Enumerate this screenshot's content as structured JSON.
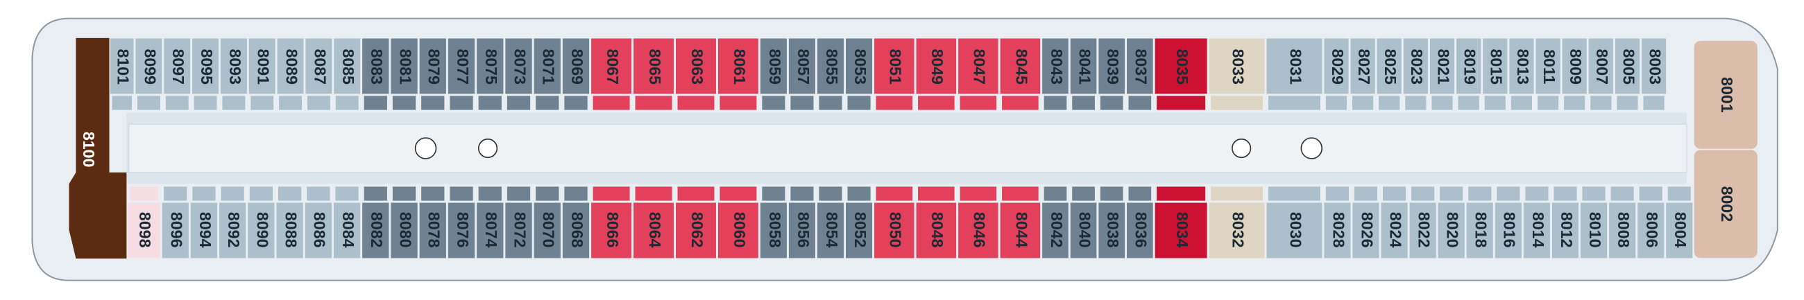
{
  "rooms_top": [
    {
      "label": "8101",
      "color": "#abc0cb"
    },
    {
      "label": "8099",
      "color": "#abc0cb"
    },
    {
      "label": "8097",
      "color": "#abc0cb"
    },
    {
      "label": "8095",
      "color": "#abc0cb"
    },
    {
      "label": "8093",
      "color": "#abc0cb"
    },
    {
      "label": "8091",
      "color": "#abc0cb"
    },
    {
      "label": "8089",
      "color": "#abc0cb"
    },
    {
      "label": "8087",
      "color": "#abc0cb"
    },
    {
      "label": "8085",
      "color": "#abc0cb"
    },
    {
      "label": "8083",
      "color": "#6e8291"
    },
    {
      "label": "8081",
      "color": "#6e8291"
    },
    {
      "label": "8079",
      "color": "#6e8291"
    },
    {
      "label": "8077",
      "color": "#6e8291"
    },
    {
      "label": "8075",
      "color": "#6e8291"
    },
    {
      "label": "8073",
      "color": "#6e8291"
    },
    {
      "label": "8071",
      "color": "#6e8291"
    },
    {
      "label": "8069",
      "color": "#6e8291"
    },
    {
      "label": "8067",
      "color": "#e3415b"
    },
    {
      "label": "8065",
      "color": "#e3415b"
    },
    {
      "label": "8063",
      "color": "#e3415b"
    },
    {
      "label": "8061",
      "color": "#e3415b"
    },
    {
      "label": "8059",
      "color": "#6e8291"
    },
    {
      "label": "8057",
      "color": "#6e8291"
    },
    {
      "label": "8055",
      "color": "#6e8291"
    },
    {
      "label": "8053",
      "color": "#6e8291"
    },
    {
      "label": "8051",
      "color": "#e3415b"
    },
    {
      "label": "8049",
      "color": "#e3415b"
    },
    {
      "label": "8047",
      "color": "#e3415b"
    },
    {
      "label": "8045",
      "color": "#e3415b"
    },
    {
      "label": "8043",
      "color": "#6e8291"
    },
    {
      "label": "8041",
      "color": "#6e8291"
    },
    {
      "label": "8039",
      "color": "#6e8291"
    },
    {
      "label": "8037",
      "color": "#6e8291"
    },
    {
      "label": "8035",
      "color": "#cc1132"
    },
    {
      "label": "8033",
      "color": "#ded6c3"
    },
    {
      "label": "8031",
      "color": "#abc0cb"
    },
    {
      "label": "8029",
      "color": "#abc0cb"
    },
    {
      "label": "8027",
      "color": "#abc0cb"
    },
    {
      "label": "8025",
      "color": "#abc0cb"
    },
    {
      "label": "8023",
      "color": "#abc0cb"
    },
    {
      "label": "8021",
      "color": "#abc0cb"
    },
    {
      "label": "8019",
      "color": "#abc0cb"
    },
    {
      "label": "8015",
      "color": "#abc0cb"
    },
    {
      "label": "8013",
      "color": "#abc0cb"
    },
    {
      "label": "8011",
      "color": "#abc0cb"
    },
    {
      "label": "8009",
      "color": "#abc0cb"
    },
    {
      "label": "8007",
      "color": "#abc0cb"
    },
    {
      "label": "8005",
      "color": "#abc0cb"
    },
    {
      "label": "8003",
      "color": "#abc0cb"
    }
  ],
  "rooms_bottom": [
    {
      "label": "8098",
      "color": "#f6dde3"
    },
    {
      "label": "8096",
      "color": "#abc0cb"
    },
    {
      "label": "8094",
      "color": "#abc0cb"
    },
    {
      "label": "8092",
      "color": "#abc0cb"
    },
    {
      "label": "8090",
      "color": "#abc0cb"
    },
    {
      "label": "8088",
      "color": "#abc0cb"
    },
    {
      "label": "8086",
      "color": "#abc0cb"
    },
    {
      "label": "8084",
      "color": "#abc0cb"
    },
    {
      "label": "8082",
      "color": "#6e8291"
    },
    {
      "label": "8080",
      "color": "#6e8291"
    },
    {
      "label": "8078",
      "color": "#6e8291"
    },
    {
      "label": "8076",
      "color": "#6e8291"
    },
    {
      "label": "8074",
      "color": "#6e8291"
    },
    {
      "label": "8072",
      "color": "#6e8291"
    },
    {
      "label": "8070",
      "color": "#6e8291"
    },
    {
      "label": "8068",
      "color": "#6e8291"
    },
    {
      "label": "8066",
      "color": "#e3415b"
    },
    {
      "label": "8064",
      "color": "#e3415b"
    },
    {
      "label": "8062",
      "color": "#e3415b"
    },
    {
      "label": "8060",
      "color": "#e3415b"
    },
    {
      "label": "8058",
      "color": "#6e8291"
    },
    {
      "label": "8056",
      "color": "#6e8291"
    },
    {
      "label": "8054",
      "color": "#6e8291"
    },
    {
      "label": "8052",
      "color": "#6e8291"
    },
    {
      "label": "8050",
      "color": "#e3415b"
    },
    {
      "label": "8048",
      "color": "#e3415b"
    },
    {
      "label": "8046",
      "color": "#e3415b"
    },
    {
      "label": "8044",
      "color": "#e3415b"
    },
    {
      "label": "8042",
      "color": "#6e8291"
    },
    {
      "label": "8040",
      "color": "#6e8291"
    },
    {
      "label": "8038",
      "color": "#6e8291"
    },
    {
      "label": "8036",
      "color": "#6e8291"
    },
    {
      "label": "8034",
      "color": "#cc1132"
    },
    {
      "label": "8032",
      "color": "#ded6c3"
    },
    {
      "label": "8030",
      "color": "#abc0cb"
    },
    {
      "label": "8028",
      "color": "#abc0cb"
    },
    {
      "label": "8026",
      "color": "#abc0cb"
    },
    {
      "label": "8024",
      "color": "#abc0cb"
    },
    {
      "label": "8022",
      "color": "#abc0cb"
    },
    {
      "label": "8020",
      "color": "#abc0cb"
    },
    {
      "label": "8018",
      "color": "#abc0cb"
    },
    {
      "label": "8016",
      "color": "#abc0cb"
    },
    {
      "label": "8014",
      "color": "#abc0cb"
    },
    {
      "label": "8012",
      "color": "#abc0cb"
    },
    {
      "label": "8010",
      "color": "#abc0cb"
    },
    {
      "label": "8008",
      "color": "#abc0cb"
    },
    {
      "label": "8006",
      "color": "#abc0cb"
    },
    {
      "label": "8004",
      "color": "#abc0cb"
    }
  ],
  "stern": {
    "label": "8100",
    "color": "#5b2c12"
  },
  "bow": [
    {
      "label": "8001",
      "color": "#dcbcab"
    },
    {
      "label": "8002",
      "color": "#dcbcab"
    }
  ]
}
